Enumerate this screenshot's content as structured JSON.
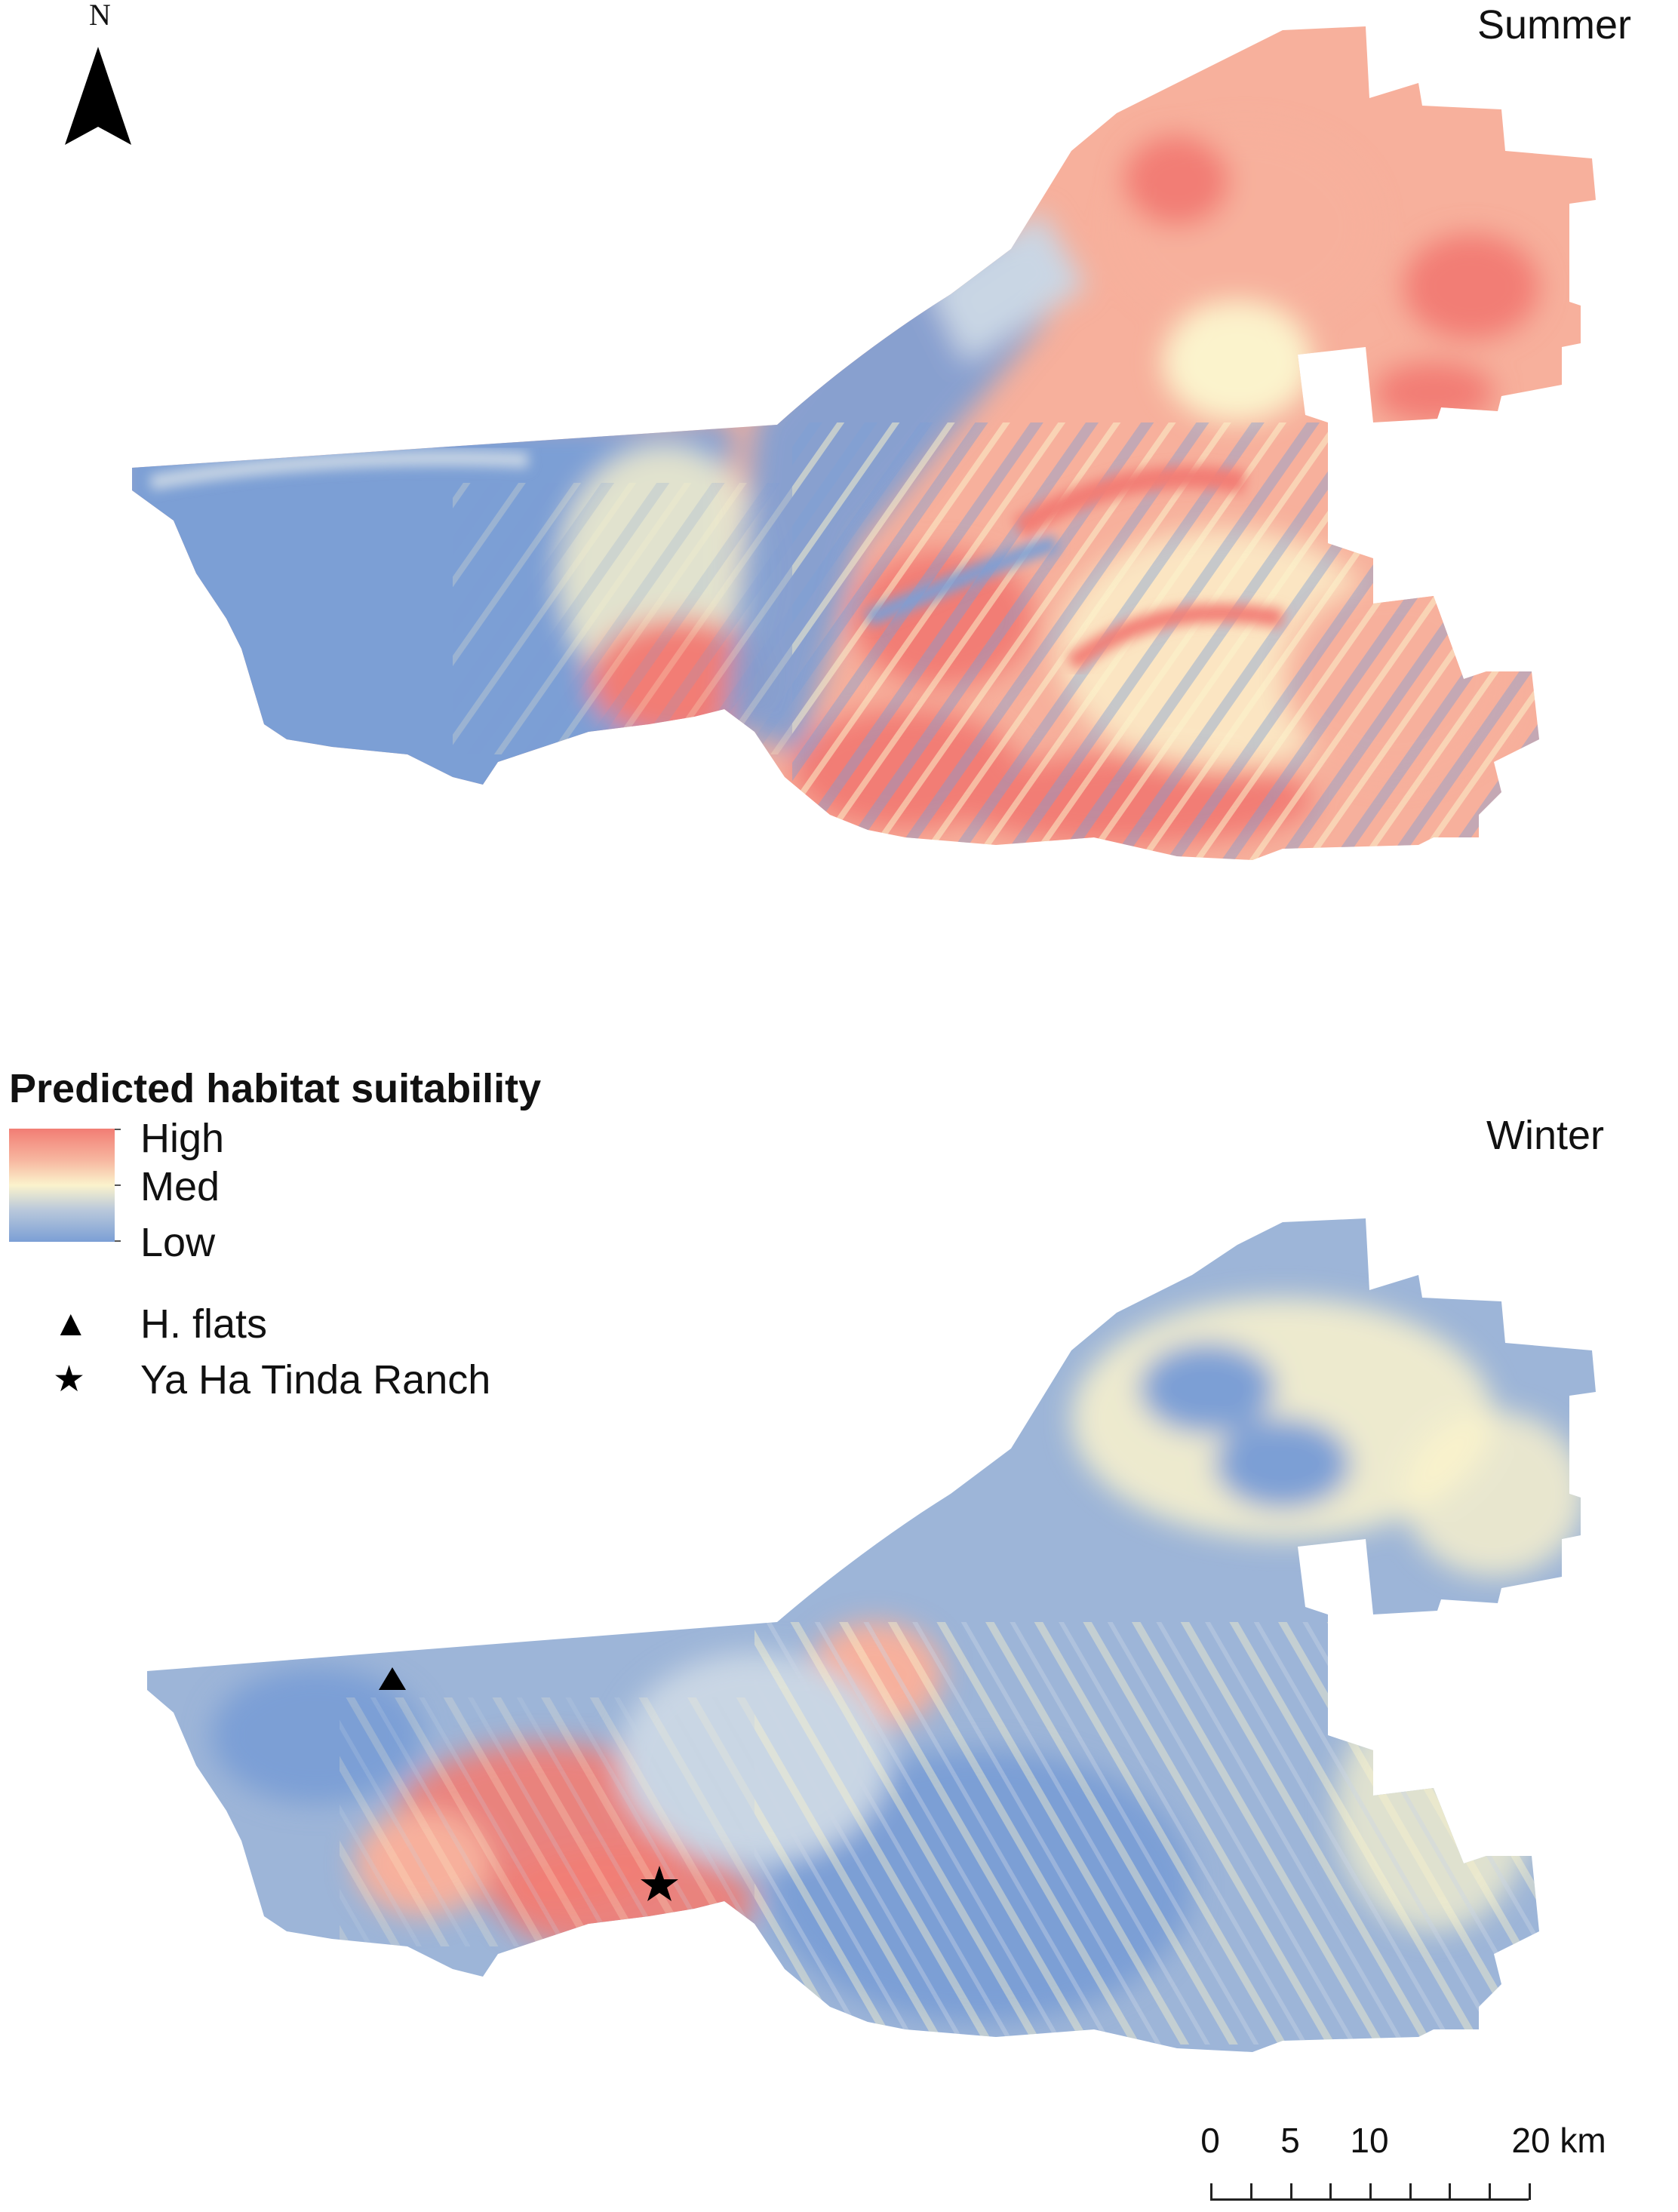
{
  "panels": {
    "summer": {
      "title": "Summer"
    },
    "winter": {
      "title": "Winter"
    }
  },
  "legend": {
    "heading": "Predicted habitat suitability",
    "ramp": {
      "high": "High",
      "med": "Med",
      "low": "Low",
      "colors": {
        "high": "#f27d74",
        "med": "#fbf3cc",
        "low": "#7b9fd5"
      }
    },
    "symbols": [
      {
        "icon": "triangle-icon",
        "label": "H. flats"
      },
      {
        "icon": "star-icon",
        "label": "Ya Ha Tinda Ranch"
      }
    ]
  },
  "north_arrow": {
    "label": "N"
  },
  "scale_bar": {
    "ticks": [
      "0",
      "5",
      "10",
      "20 km"
    ]
  },
  "map_colors": {
    "high": "#f27d74",
    "high_light": "#f7b09c",
    "med": "#fbf3cc",
    "low_light": "#c9d6e4",
    "low": "#7b9fd5"
  }
}
